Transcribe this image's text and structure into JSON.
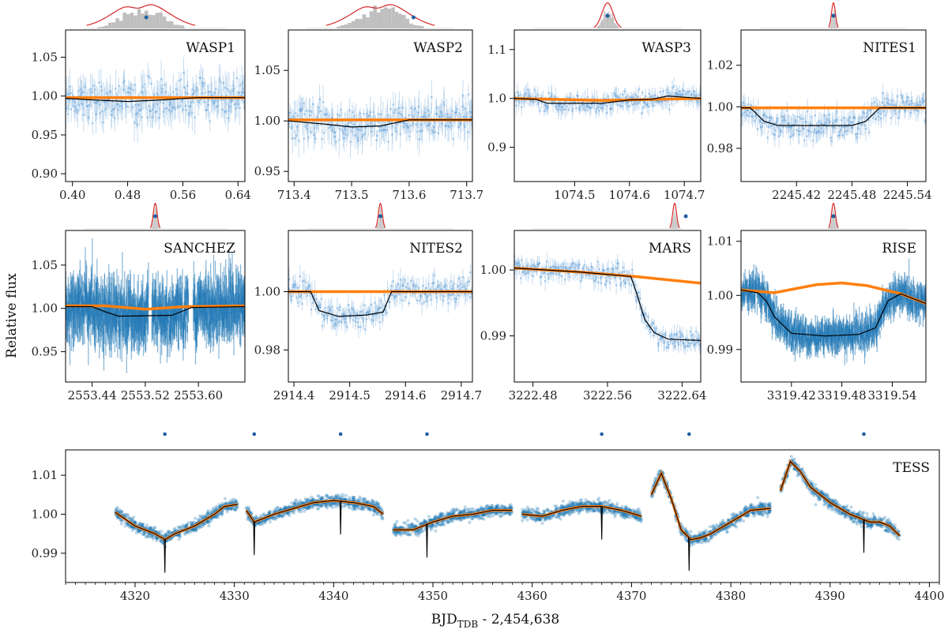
{
  "figure": {
    "ylabel": "Relative flux",
    "xlabel_main": "BJD",
    "xlabel_sub": "TDB",
    "xlabel_rest": " - 2,454,638"
  },
  "chart_data": [
    {
      "type": "line",
      "label": "WASP1",
      "xlim": [
        0.39,
        0.65
      ],
      "ylim": [
        0.89,
        1.085
      ],
      "xticks": [
        0.4,
        0.48,
        0.56,
        0.64
      ],
      "xtick_labels": [
        "0.40",
        "0.48",
        "0.56",
        "0.64"
      ],
      "yticks": [
        0.9,
        0.95,
        1.0,
        1.05
      ],
      "ytick_labels": [
        "0.90",
        "0.95",
        "1.00",
        "1.05"
      ],
      "model_transit": [
        [
          0.39,
          0.997
        ],
        [
          0.43,
          0.995
        ],
        [
          0.48,
          0.993
        ],
        [
          0.53,
          0.995
        ],
        [
          0.58,
          0.998
        ],
        [
          0.65,
          0.998
        ]
      ],
      "model_baseline": [
        [
          0.39,
          0.998
        ],
        [
          0.65,
          0.998
        ]
      ],
      "scatter": 0.025,
      "hist": "wide",
      "marker_frac": 0.45
    },
    {
      "type": "line",
      "label": "WASP2",
      "xlim": [
        713.39,
        713.71
      ],
      "ylim": [
        0.94,
        1.09
      ],
      "xticks": [
        713.4,
        713.5,
        713.6,
        713.7
      ],
      "xtick_labels": [
        "713.4",
        "713.5",
        "713.6",
        "713.7"
      ],
      "yticks": [
        0.95,
        1.0,
        1.05
      ],
      "ytick_labels": [
        "0.95",
        "1.00",
        "1.05"
      ],
      "model_transit": [
        [
          713.39,
          1.0
        ],
        [
          713.45,
          0.997
        ],
        [
          713.5,
          0.994
        ],
        [
          713.55,
          0.995
        ],
        [
          713.6,
          1.001
        ],
        [
          713.71,
          1.001
        ]
      ],
      "model_baseline": [
        [
          713.39,
          1.001
        ],
        [
          713.71,
          1.001
        ]
      ],
      "scatter": 0.018,
      "hist": "wide",
      "marker_frac": 0.68
    },
    {
      "type": "line",
      "label": "WASP3",
      "xlim": [
        1074.39,
        1074.73
      ],
      "ylim": [
        0.83,
        1.14
      ],
      "xticks": [
        1074.5,
        1074.6,
        1074.7
      ],
      "xtick_labels": [
        "1074.5",
        "1074.6",
        "1074.7"
      ],
      "yticks": [
        0.9,
        1.0,
        1.1
      ],
      "ytick_labels": [
        "0.9",
        "1.0",
        "1.1"
      ],
      "model_transit": [
        [
          1074.39,
          1.0
        ],
        [
          1074.43,
          0.998
        ],
        [
          1074.45,
          0.99
        ],
        [
          1074.55,
          0.99
        ],
        [
          1074.6,
          0.997
        ],
        [
          1074.64,
          0.998
        ],
        [
          1074.67,
          1.005
        ],
        [
          1074.73,
          1.0
        ]
      ],
      "model_baseline": [
        [
          1074.39,
          1.0
        ],
        [
          1074.55,
          0.996
        ],
        [
          1074.73,
          1.0
        ]
      ],
      "scatter": 0.02,
      "hist": "peak",
      "marker_frac": 0.5
    },
    {
      "type": "line",
      "label": "NITES1",
      "xlim": [
        2245.36,
        2245.56
      ],
      "ylim": [
        0.964,
        1.037
      ],
      "xticks": [
        2245.42,
        2245.48,
        2245.54
      ],
      "xtick_labels": [
        "2245.42",
        "2245.48",
        "2245.54"
      ],
      "yticks": [
        0.98,
        1.0,
        1.02
      ],
      "ytick_labels": [
        "0.98",
        "1.00",
        "1.02"
      ],
      "model_transit": [
        [
          2245.36,
          0.9995
        ],
        [
          2245.37,
          0.9995
        ],
        [
          2245.385,
          0.993
        ],
        [
          2245.4,
          0.991
        ],
        [
          2245.48,
          0.991
        ],
        [
          2245.495,
          0.993
        ],
        [
          2245.51,
          0.9995
        ],
        [
          2245.56,
          0.9995
        ]
      ],
      "model_baseline": [
        [
          2245.36,
          0.9995
        ],
        [
          2245.56,
          0.9995
        ]
      ],
      "scatter": 0.006,
      "hist": "narrow",
      "marker_frac": 0.5
    },
    {
      "type": "line",
      "label": "SANCHEZ",
      "xlim": [
        2553.4,
        2553.67
      ],
      "ylim": [
        0.915,
        1.09
      ],
      "xticks": [
        2553.44,
        2553.52,
        2553.6
      ],
      "xtick_labels": [
        "2553.44",
        "2553.52",
        "2553.60"
      ],
      "yticks": [
        0.95,
        1.0,
        1.05
      ],
      "ytick_labels": [
        "0.95",
        "1.00",
        "1.05"
      ],
      "model_transit": [
        [
          2553.4,
          1.002
        ],
        [
          2553.44,
          1.002
        ],
        [
          2553.46,
          0.996
        ],
        [
          2553.48,
          0.991
        ],
        [
          2553.56,
          0.992
        ],
        [
          2553.59,
          1.001
        ],
        [
          2553.67,
          1.002
        ]
      ],
      "model_baseline": [
        [
          2553.4,
          1.003
        ],
        [
          2553.46,
          1.003
        ],
        [
          2553.52,
          0.999
        ],
        [
          2553.58,
          1.002
        ],
        [
          2553.67,
          1.003
        ]
      ],
      "scatter": 0.03,
      "dense": true,
      "gaps": [
        [
          2553.525,
          2553.53
        ],
        [
          2553.585,
          2553.592
        ]
      ],
      "hist": "narrow",
      "marker_frac": 0.5
    },
    {
      "type": "line",
      "label": "NITES2",
      "xlim": [
        2914.39,
        2914.72
      ],
      "ylim": [
        0.969,
        1.021
      ],
      "xticks": [
        2914.4,
        2914.5,
        2914.6,
        2914.7
      ],
      "xtick_labels": [
        "2914.4",
        "2914.5",
        "2914.6",
        "2914.7"
      ],
      "yticks": [
        0.98,
        1.0
      ],
      "ytick_labels": [
        "0.98",
        "1.00"
      ],
      "model_transit": [
        [
          2914.39,
          1.0
        ],
        [
          2914.43,
          1.0
        ],
        [
          2914.445,
          0.9935
        ],
        [
          2914.48,
          0.9915
        ],
        [
          2914.53,
          0.992
        ],
        [
          2914.56,
          0.993
        ],
        [
          2914.575,
          1.0
        ],
        [
          2914.72,
          1.0
        ]
      ],
      "model_baseline": [
        [
          2914.39,
          1.0
        ],
        [
          2914.72,
          1.0
        ]
      ],
      "scatter": 0.004,
      "hist": "narrow",
      "marker_frac": 0.5
    },
    {
      "type": "line",
      "label": "MARS",
      "xlim": [
        3222.46,
        3222.66
      ],
      "ylim": [
        0.983,
        1.006
      ],
      "xticks": [
        3222.48,
        3222.56,
        3222.64
      ],
      "xtick_labels": [
        "3222.48",
        "3222.56",
        "3222.64"
      ],
      "yticks": [
        0.99,
        1.0
      ],
      "ytick_labels": [
        "0.99",
        "1.00"
      ],
      "model_transit": [
        [
          3222.46,
          1.0003
        ],
        [
          3222.53,
          0.9997
        ],
        [
          3222.585,
          0.999
        ],
        [
          3222.59,
          0.997
        ],
        [
          3222.6,
          0.9925
        ],
        [
          3222.61,
          0.9905
        ],
        [
          3222.625,
          0.9895
        ],
        [
          3222.66,
          0.9893
        ]
      ],
      "model_baseline": [
        [
          3222.46,
          1.0003
        ],
        [
          3222.53,
          0.9997
        ],
        [
          3222.59,
          0.999
        ],
        [
          3222.66,
          0.998
        ]
      ],
      "scatter": 0.0015,
      "hist": "offset",
      "marker_frac": 0.92
    },
    {
      "type": "line",
      "label": "RISE",
      "xlim": [
        3319.36,
        3319.58
      ],
      "ylim": [
        0.984,
        1.012
      ],
      "xticks": [
        3319.42,
        3319.48,
        3319.54
      ],
      "xtick_labels": [
        "3319.42",
        "3319.48",
        "3319.54"
      ],
      "yticks": [
        0.99,
        1.0,
        1.01
      ],
      "ytick_labels": [
        "0.99",
        "1.00",
        "1.01"
      ],
      "model_transit": [
        [
          3319.36,
          1.001
        ],
        [
          3319.38,
          1.0005
        ],
        [
          3319.39,
          0.999
        ],
        [
          3319.4,
          0.996
        ],
        [
          3319.42,
          0.993
        ],
        [
          3319.46,
          0.9925
        ],
        [
          3319.5,
          0.9928
        ],
        [
          3319.52,
          0.994
        ],
        [
          3319.535,
          0.999
        ],
        [
          3319.55,
          1.0003
        ],
        [
          3319.58,
          0.9985
        ]
      ],
      "model_baseline": [
        [
          3319.36,
          1.001
        ],
        [
          3319.4,
          1.0005
        ],
        [
          3319.45,
          1.002
        ],
        [
          3319.48,
          1.0023
        ],
        [
          3319.51,
          1.0018
        ],
        [
          3319.55,
          1.0003
        ],
        [
          3319.58,
          0.9985
        ]
      ],
      "scatter": 0.0025,
      "dense": true,
      "hist": "narrow",
      "marker_frac": 0.5
    },
    {
      "type": "line",
      "label": "TESS",
      "xlim": [
        4313,
        4401
      ],
      "ylim": [
        0.9825,
        1.0165
      ],
      "xticks": [
        4320,
        4330,
        4340,
        4350,
        4360,
        4370,
        4380,
        4390,
        4400
      ],
      "xtick_labels": [
        "4320",
        "4330",
        "4340",
        "4350",
        "4360",
        "4370",
        "4380",
        "4390",
        "4400"
      ],
      "yticks": [
        0.99,
        1.0,
        1.01
      ],
      "ytick_labels": [
        "0.99",
        "1.00",
        "1.01"
      ],
      "transits": [
        4323.0,
        4332.0,
        4340.7,
        4349.4,
        4367.0,
        4375.8,
        4393.4
      ],
      "transit_depth": 0.0085,
      "segments": [
        [
          [
            4318,
            1.0005
          ],
          [
            4320,
            0.997
          ],
          [
            4322,
            0.995
          ],
          [
            4323,
            0.9935
          ],
          [
            4324,
            0.995
          ],
          [
            4326,
            0.997
          ],
          [
            4328,
            1.0
          ],
          [
            4329,
            1.002
          ],
          [
            4330.3,
            1.0025
          ]
        ],
        [
          [
            4331.2,
            1.001
          ],
          [
            4332,
            0.998
          ],
          [
            4333,
            0.999
          ],
          [
            4334,
            1.0
          ],
          [
            4336,
            1.0015
          ],
          [
            4338,
            1.003
          ],
          [
            4340,
            1.0035
          ],
          [
            4342,
            1.003
          ],
          [
            4344,
            1.002
          ],
          [
            4345,
            1.0
          ]
        ],
        [
          [
            4346,
            0.996
          ],
          [
            4348,
            0.996
          ],
          [
            4350,
            0.998
          ],
          [
            4352,
            0.9995
          ],
          [
            4354,
            1.0
          ],
          [
            4356,
            1.001
          ],
          [
            4358,
            1.001
          ]
        ],
        [
          [
            4359,
            1.0
          ],
          [
            4361,
            0.9995
          ],
          [
            4363,
            1.001
          ],
          [
            4365,
            1.002
          ],
          [
            4367,
            1.002
          ],
          [
            4369,
            1.001
          ],
          [
            4371,
            0.9995
          ]
        ],
        [
          [
            4372,
            1.005
          ],
          [
            4373,
            1.0105
          ],
          [
            4374,
            1.004
          ],
          [
            4375,
            0.996
          ],
          [
            4376,
            0.9935
          ],
          [
            4377,
            0.994
          ],
          [
            4378,
            0.995
          ],
          [
            4380,
            0.998
          ],
          [
            4382,
            1.001
          ],
          [
            4384,
            1.0015
          ]
        ],
        [
          [
            4385,
            1.006
          ],
          [
            4386,
            1.0135
          ],
          [
            4387,
            1.011
          ],
          [
            4388,
            1.007
          ],
          [
            4390,
            1.003
          ],
          [
            4392,
            1.0
          ],
          [
            4394,
            0.998
          ],
          [
            4395,
            0.998
          ],
          [
            4396,
            0.997
          ],
          [
            4397,
            0.9945
          ]
        ]
      ],
      "scatter": 0.0012
    }
  ]
}
